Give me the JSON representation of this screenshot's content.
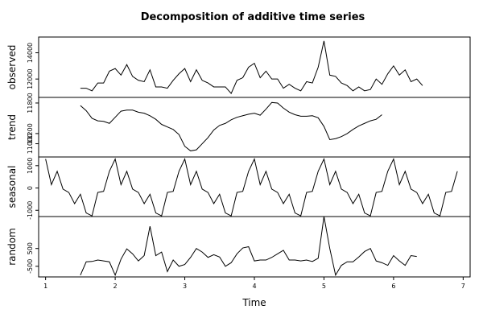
{
  "chart_data": {
    "type": "line",
    "title": "Decomposition of additive time series",
    "xlabel": "Time",
    "x_ticks": [
      1,
      2,
      3,
      4,
      5,
      6,
      7
    ],
    "xlim": [
      0.9,
      7.1
    ],
    "frequency": 12,
    "grid": false,
    "panels": [
      {
        "key": "observed",
        "ylabel": "observed",
        "ylim": [
          10600,
          15200
        ],
        "y_ticks": [
          12000,
          14000
        ],
        "x_start": 1.5,
        "values": [
          11300,
          11300,
          11100,
          11700,
          11700,
          12600,
          12800,
          12300,
          13100,
          12200,
          11900,
          11800,
          12700,
          11400,
          11400,
          11300,
          11900,
          12400,
          12800,
          11800,
          12700,
          11900,
          11700,
          11400,
          11400,
          11400,
          10900,
          11900,
          12100,
          12900,
          13200,
          12100,
          12600,
          12000,
          12000,
          11300,
          11600,
          11300,
          11100,
          11800,
          11700,
          12900,
          14900,
          12300,
          12200,
          11700,
          11500,
          11100,
          11400,
          11100,
          11200,
          12000,
          11600,
          12400,
          13000,
          12300,
          12700,
          11800,
          12000,
          11500
        ]
      },
      {
        "key": "trend",
        "ylabel": "trend",
        "ylim": [
          10740,
          11910
        ],
        "y_ticks": [
          11000,
          11200,
          11800
        ],
        "x_start": 1.5,
        "values": [
          11750,
          11650,
          11500,
          11450,
          11440,
          11400,
          11520,
          11640,
          11660,
          11660,
          11620,
          11600,
          11550,
          11480,
          11380,
          11330,
          11280,
          11180,
          10950,
          10860,
          10880,
          11000,
          11120,
          11270,
          11360,
          11400,
          11470,
          11520,
          11550,
          11580,
          11600,
          11560,
          11680,
          11810,
          11800,
          11700,
          11620,
          11570,
          11540,
          11540,
          11550,
          11510,
          11340,
          11080,
          11100,
          11140,
          11200,
          11280,
          11350,
          11400,
          11450,
          11480,
          11570
        ]
      },
      {
        "key": "seasonal",
        "ylabel": "seasonal",
        "ylim": [
          -1280,
          1390
        ],
        "y_ticks": [
          -1000,
          0,
          1000
        ],
        "x_start": 1.0,
        "values": [
          1300,
          150,
          750,
          -50,
          -200,
          -700,
          -280,
          -1120,
          -1250,
          -200,
          -150,
          750,
          1300,
          150,
          750,
          -50,
          -200,
          -700,
          -280,
          -1120,
          -1250,
          -200,
          -150,
          750,
          1300,
          150,
          750,
          -50,
          -200,
          -700,
          -280,
          -1120,
          -1250,
          -200,
          -150,
          750,
          1300,
          150,
          750,
          -50,
          -200,
          -700,
          -280,
          -1120,
          -1250,
          -200,
          -150,
          750,
          1300,
          150,
          750,
          -50,
          -200,
          -700,
          -280,
          -1120,
          -1250,
          -200,
          -150,
          750,
          1300,
          150,
          750,
          -50,
          -200,
          -700,
          -280,
          -1120,
          -1250,
          -200,
          -150,
          750
        ]
      },
      {
        "key": "random",
        "ylabel": "random",
        "ylim": [
          -1100,
          2300
        ],
        "y_ticks": [
          -500,
          500
        ],
        "x_start": 1.5,
        "values": [
          -1000,
          -250,
          -230,
          -150,
          -200,
          -250,
          -1000,
          -100,
          480,
          200,
          -200,
          100,
          1750,
          100,
          300,
          -800,
          -150,
          -500,
          -400,
          0,
          500,
          300,
          0,
          150,
          20,
          -500,
          -300,
          200,
          530,
          600,
          -200,
          -150,
          -150,
          0,
          200,
          400,
          -150,
          -150,
          -200,
          -150,
          -230,
          -50,
          2300,
          500,
          -1000,
          -450,
          -250,
          -250,
          20,
          330,
          500,
          -200,
          -300,
          -450,
          100,
          -200,
          -450,
          100,
          50
        ]
      }
    ]
  }
}
